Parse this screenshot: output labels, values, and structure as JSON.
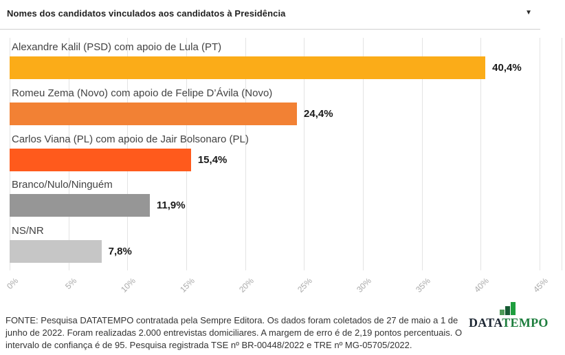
{
  "header": {
    "title": "Nomes dos candidatos vinculados aos candidatos à Presidência",
    "dropdown_icon": "▼"
  },
  "chart_data": {
    "type": "bar",
    "orientation": "horizontal",
    "title": "Nomes dos candidatos vinculados aos candidatos à Presidência",
    "categories": [
      "Alexandre Kalil (PSD) com apoio de Lula (PT)",
      "Romeu Zema (Novo) com apoio de Felipe D’Ávila (Novo)",
      "Carlos Viana (PL) com apoio de Jair Bolsonaro (PL)",
      "Branco/Nulo/Ninguém",
      "NS/NR"
    ],
    "values": [
      40.4,
      24.4,
      15.4,
      11.9,
      7.8
    ],
    "value_labels": [
      "40,4%",
      "24,4%",
      "15,4%",
      "11,9%",
      "7,8%"
    ],
    "bar_colors": [
      "#FBAC18",
      "#F28134",
      "#FF5A1C",
      "#969696",
      "#C6C6C6"
    ],
    "xlim": [
      0,
      45
    ],
    "ticks": [
      0,
      5,
      10,
      15,
      20,
      25,
      30,
      35,
      40,
      45
    ],
    "tick_labels": [
      "0%",
      "5%",
      "10%",
      "15%",
      "20%",
      "25%",
      "30%",
      "35%",
      "40%",
      "45%"
    ],
    "grid": true,
    "gridline_color": "#e3e3e3"
  },
  "footer": {
    "source_text": "FONTE: Pesquisa DATATEMPO contratada pela Sempre Editora. Os dados foram coletados de 27 de maio a 1 de junho de 2022. Foram realizadas 2.000 entrevistas domiciliares. A margem de erro é de 2,19 pontos percentuais. O intervalo de confiança é de 95. Pesquisa registrada TSE nº BR-00448/2022 e TRE nº MG-05705/2022.",
    "logo": {
      "part1": "DATA",
      "part2": "TEMPO",
      "part1_color": "#1d2733",
      "part2_color": "#1e7e3e",
      "icon": "bar-chart-icon",
      "icon_bar_colors": [
        "#4e9b57",
        "#165b33",
        "#1e9e3e"
      ],
      "icon_bar_heights": [
        8,
        13,
        19
      ]
    }
  }
}
